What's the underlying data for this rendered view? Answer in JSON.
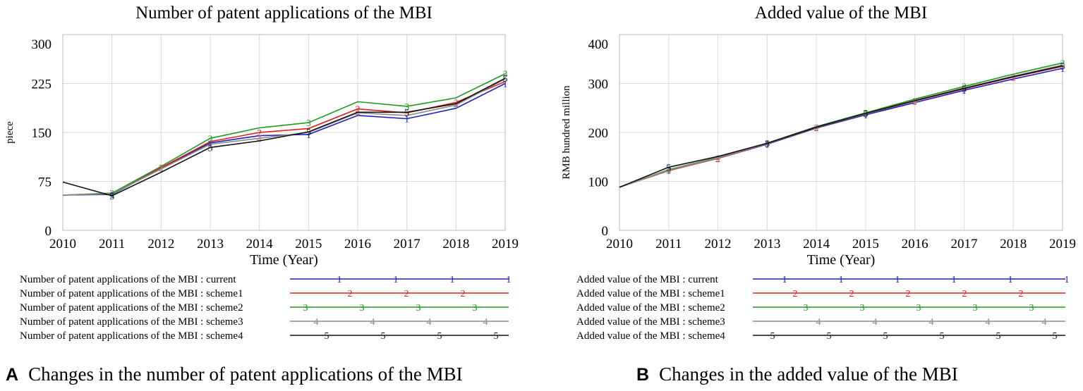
{
  "charts": [
    {
      "panel_label": "A",
      "caption": "Changes in the number of patent applications of the MBI",
      "legend_prefix": "Number of patent applications of the MBI : "
    },
    {
      "panel_label": "B",
      "caption": "Changes in the added value of the MBI",
      "legend_prefix": "Added value of the MBI : "
    }
  ],
  "chart_data": [
    {
      "type": "line",
      "title": "Number of patent applications of the MBI",
      "xlabel": "Time (Year)",
      "ylabel": "piece",
      "x": [
        2010,
        2011,
        2012,
        2013,
        2014,
        2015,
        2016,
        2017,
        2018,
        2019
      ],
      "xticks": [
        "2010",
        "2011",
        "2012",
        "2013",
        "2014",
        "2015",
        "2016",
        "2017",
        "2018",
        "2019"
      ],
      "ylim": [
        0,
        300
      ],
      "yticks": [
        "0",
        "75",
        "150",
        "225",
        "300"
      ],
      "grid": true,
      "series": [
        {
          "name": "current",
          "marker": "1",
          "color": "#1f1fc0",
          "values": [
            54,
            55,
            95,
            134,
            145,
            147,
            176,
            171,
            187,
            225
          ]
        },
        {
          "name": "scheme1",
          "marker": "2",
          "color": "#e02020",
          "values": [
            54,
            57,
            96,
            136,
            150,
            156,
            186,
            180,
            196,
            228
          ]
        },
        {
          "name": "scheme2",
          "marker": "3",
          "color": "#1f9a1f",
          "values": [
            54,
            57,
            98,
            141,
            157,
            165,
            197,
            190,
            203,
            240
          ]
        },
        {
          "name": "scheme3",
          "marker": "4",
          "color": "#8c8c8c",
          "values": [
            54,
            56,
            94,
            132,
            141,
            150,
            180,
            176,
            192,
            232
          ]
        },
        {
          "name": "scheme4",
          "marker": "5",
          "color": "#111111",
          "values": [
            74,
            53,
            89,
            127,
            137,
            151,
            181,
            181,
            194,
            233
          ]
        }
      ]
    },
    {
      "type": "line",
      "title": "Added value of the MBI",
      "xlabel": "Time (Year)",
      "ylabel": "RMB hundred million",
      "x": [
        2010,
        2011,
        2012,
        2013,
        2014,
        2015,
        2016,
        2017,
        2018,
        2019
      ],
      "xticks": [
        "2010",
        "2011",
        "2012",
        "2013",
        "2014",
        "2015",
        "2016",
        "2017",
        "2018",
        "2019"
      ],
      "ylim": [
        0,
        400
      ],
      "yticks": [
        "0",
        "100",
        "200",
        "300",
        "400"
      ],
      "grid": true,
      "series": [
        {
          "name": "current",
          "marker": "1",
          "color": "#1f1fc0",
          "values": [
            88,
            123,
            147,
            176,
            209,
            236,
            261,
            286,
            309,
            331
          ]
        },
        {
          "name": "scheme1",
          "marker": "2",
          "color": "#e02020",
          "values": [
            88,
            122,
            147,
            177,
            210,
            238,
            264,
            289,
            313,
            335
          ]
        },
        {
          "name": "scheme2",
          "marker": "3",
          "color": "#1f9a1f",
          "values": [
            88,
            124,
            149,
            178,
            212,
            240,
            268,
            294,
            319,
            342
          ]
        },
        {
          "name": "scheme3",
          "marker": "4",
          "color": "#8c8c8c",
          "values": [
            88,
            123,
            148,
            177,
            211,
            238,
            265,
            291,
            315,
            338
          ]
        },
        {
          "name": "scheme4",
          "marker": "5",
          "color": "#111111",
          "values": [
            88,
            129,
            151,
            178,
            211,
            239,
            265,
            290,
            314,
            336
          ]
        }
      ]
    }
  ]
}
